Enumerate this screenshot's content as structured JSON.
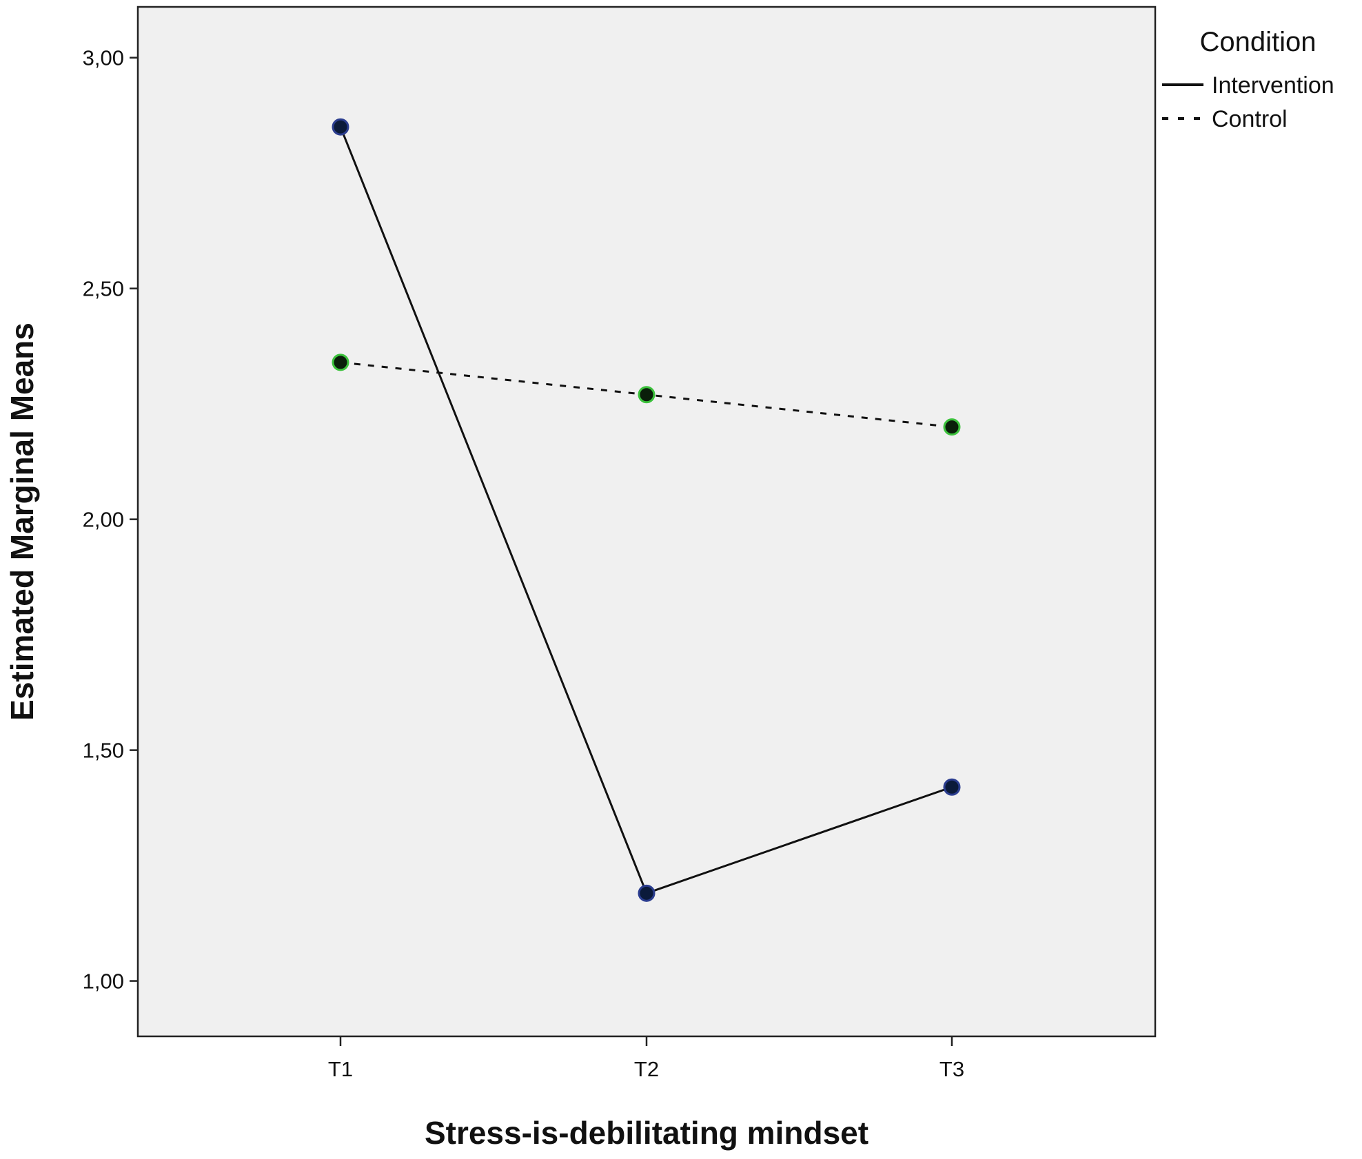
{
  "chart_data": {
    "type": "line",
    "title": "",
    "xlabel": "Stress-is-debilitating mindset",
    "ylabel": "Estimated Marginal Means",
    "categories": [
      "T1",
      "T2",
      "T3"
    ],
    "ylim": [
      0.88,
      3.11
    ],
    "y_ticks": [
      1.0,
      1.5,
      2.0,
      2.5,
      3.0
    ],
    "y_tick_labels": [
      "1,00",
      "1,50",
      "2,00",
      "2,50",
      "3,00"
    ],
    "legend": {
      "title": "Condition",
      "placement": "right"
    },
    "series": [
      {
        "name": "Intervention",
        "values": [
          2.85,
          1.19,
          1.42
        ],
        "line_style": "solid",
        "line_color": "#111111",
        "marker_color": "#0b1a3a"
      },
      {
        "name": "Control",
        "values": [
          2.34,
          2.27,
          2.2
        ],
        "line_style": "dashed",
        "line_color": "#111111",
        "marker_color": "#0a1f0a",
        "marker_edge": "#3cc23c"
      }
    ],
    "plot_background": "#f0f0f0",
    "grid": false
  }
}
